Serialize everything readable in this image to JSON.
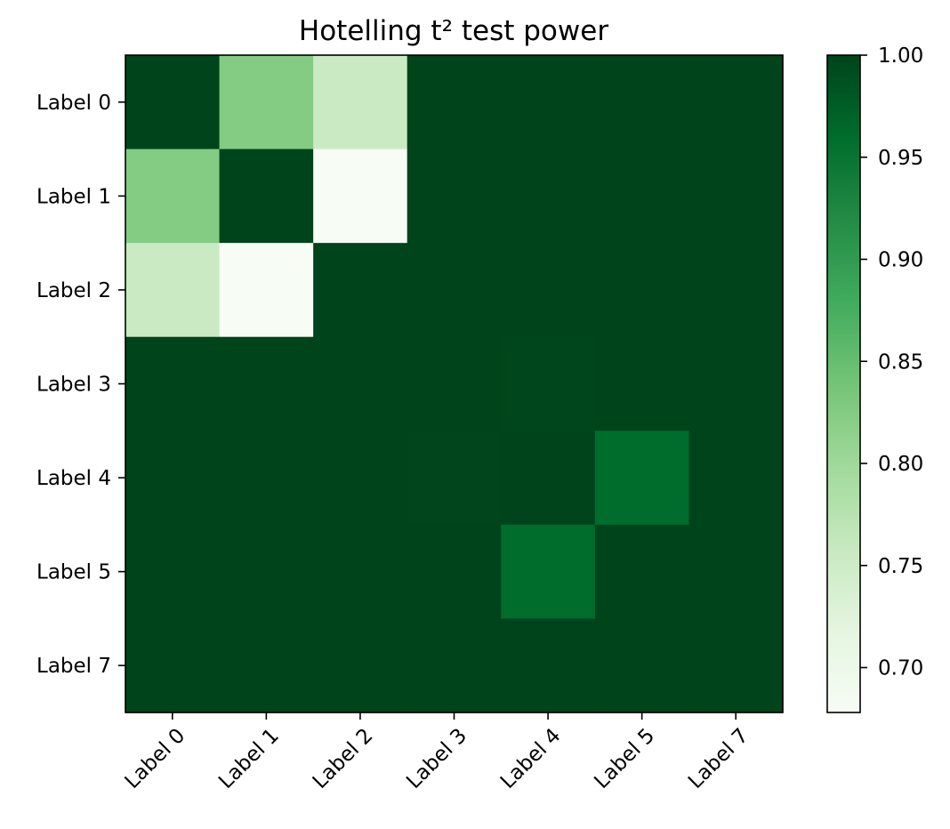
{
  "chart_data": {
    "type": "heatmap",
    "title": "Hotelling t² test power",
    "x_labels": [
      "Label 0",
      "Label 1",
      "Label 2",
      "Label 3",
      "Label 4",
      "Label 5",
      "Label 7"
    ],
    "y_labels": [
      "Label 0",
      "Label 1",
      "Label 2",
      "Label 3",
      "Label 4",
      "Label 5",
      "Label 7"
    ],
    "values": [
      [
        1.0,
        0.825,
        0.755,
        1.0,
        1.0,
        1.0,
        1.0
      ],
      [
        0.825,
        1.0,
        0.678,
        1.0,
        1.0,
        1.0,
        1.0
      ],
      [
        0.755,
        0.678,
        1.0,
        1.0,
        1.0,
        1.0,
        1.0
      ],
      [
        1.0,
        1.0,
        1.0,
        1.0,
        0.998,
        1.0,
        1.0
      ],
      [
        1.0,
        1.0,
        1.0,
        0.999,
        1.0,
        0.96,
        1.0
      ],
      [
        1.0,
        1.0,
        1.0,
        1.0,
        0.96,
        1.0,
        1.0
      ],
      [
        1.0,
        1.0,
        1.0,
        1.0,
        1.0,
        1.0,
        1.0
      ]
    ],
    "colormap": "Greens",
    "color_range": [
      0.678,
      1.0
    ],
    "colorbar_ticks": [
      "0.70",
      "0.75",
      "0.80",
      "0.85",
      "0.90",
      "0.95",
      "1.00"
    ],
    "colorbar_tick_values": [
      0.7,
      0.75,
      0.8,
      0.85,
      0.9,
      0.95,
      1.0
    ],
    "colorbar_position": "right",
    "x_tick_rotation": 45,
    "grid": false,
    "xlabel": "",
    "ylabel": ""
  }
}
